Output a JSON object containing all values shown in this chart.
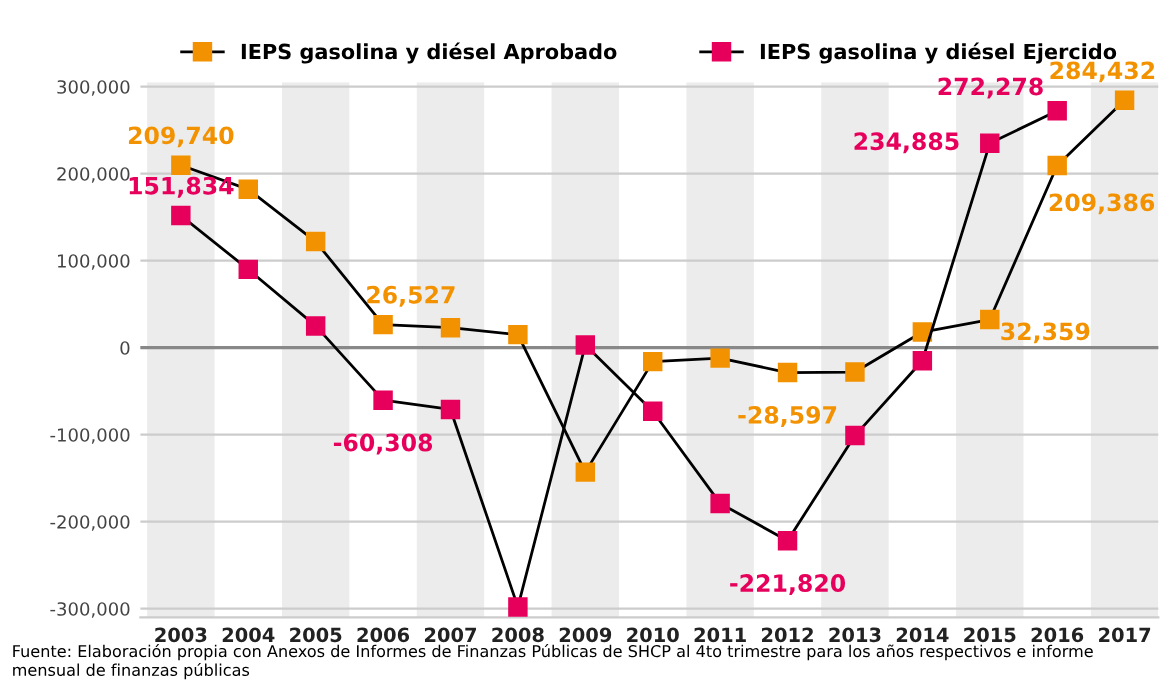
{
  "chart_data": {
    "type": "line",
    "categories": [
      "2003",
      "2004",
      "2005",
      "2006",
      "2007",
      "2008",
      "2009",
      "2010",
      "2011",
      "2012",
      "2013",
      "2014",
      "2015",
      "2016",
      "2017"
    ],
    "series": [
      {
        "name": "IEPS gasolina y diésel Aprobado",
        "color": "#f39200",
        "values": [
          209740,
          182000,
          122000,
          26527,
          23000,
          15000,
          -143000,
          -16000,
          -12000,
          -28597,
          -28000,
          18000,
          32359,
          209386,
          284432
        ],
        "value_labels": [
          "209,740",
          null,
          null,
          "26,527",
          null,
          null,
          null,
          null,
          null,
          "-28,597",
          null,
          null,
          "32,359",
          "209,386",
          "284,432"
        ]
      },
      {
        "name": "IEPS gasolina y diésel Ejercido",
        "color": "#e6005c",
        "values": [
          151834,
          90000,
          25000,
          -60308,
          -71000,
          -298000,
          3000,
          -73000,
          -179000,
          -221820,
          -101000,
          -15000,
          234885,
          272278,
          null
        ],
        "value_labels": [
          "151,834",
          null,
          null,
          "-60,308",
          null,
          null,
          null,
          null,
          null,
          "-221,820",
          null,
          null,
          "234,885",
          "272,278",
          null
        ]
      }
    ],
    "ylim": [
      -310000,
      305000
    ],
    "yticks": [
      {
        "value": -300000,
        "label": "-300,000"
      },
      {
        "value": -200000,
        "label": "-200,000"
      },
      {
        "value": -100000,
        "label": "-100,000"
      },
      0,
      {
        "value": 100000,
        "label": "100,000"
      },
      {
        "value": 200000,
        "label": "200,000"
      },
      {
        "value": 300000,
        "label": "300,000"
      }
    ],
    "grid": "y",
    "legend": "top",
    "marker": "square",
    "line_style": "solid",
    "annotations": [
      "Fuente: Elaboración propia con Anexos de Informes de Finanzas Públicas de SHCP al 4to trimestre para los años respectivos e informe mensual de finanzas públicas"
    ]
  }
}
